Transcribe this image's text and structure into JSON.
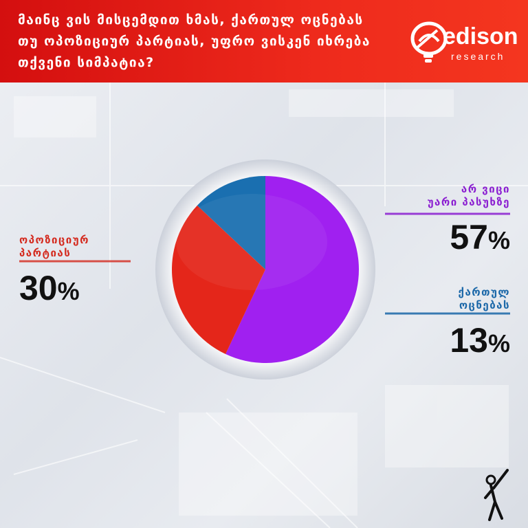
{
  "header": {
    "question": "მაინც ვის მისცემდით ხმას, ქართულ ოცნებას თუ ოპოზიციურ პარტიას, უფრო ვისკენ იხრება თქვენი სიმპატია?",
    "logo_word": "edison",
    "logo_sub": "research"
  },
  "colors": {
    "header_red": "#e8241a",
    "slice_purple": "#a020f0",
    "slice_red": "#e4261a",
    "slice_blue": "#1a6fb0"
  },
  "chart_data": {
    "type": "pie",
    "slices": [
      {
        "label": "არ ვიცი უარი პასუხზე",
        "value": 57,
        "display": "57%",
        "color": "#a020f0"
      },
      {
        "label": "ოპოზიციურ პარტიას",
        "value": 30,
        "display": "30%",
        "color": "#e4261a"
      },
      {
        "label": "ქართულ ოცნებას",
        "value": 13,
        "display": "13%",
        "color": "#1a6fb0"
      }
    ]
  },
  "labels": {
    "opposition": {
      "line1": "ოპოზიციურ",
      "line2": "პარტიას",
      "number": "30",
      "percent": "%"
    },
    "dont_know": {
      "line1": "არ ვიცი",
      "line2": "უარი პასუხზე",
      "number": "57",
      "percent": "%"
    },
    "georgian_dream": {
      "line1": "ქართულ",
      "line2": "ოცნებას",
      "number": "13",
      "percent": "%"
    }
  },
  "icons": {
    "corner": "person-raising-arm-icon"
  }
}
